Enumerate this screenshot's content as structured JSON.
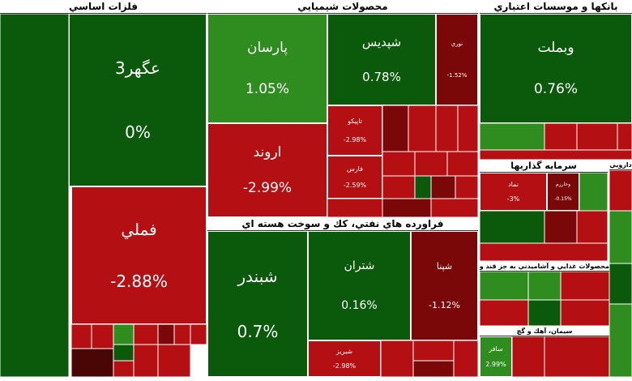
{
  "sectors": [
    {
      "title": "فلزات اساسي",
      "tiles": [
        {
          "name": "عگهر3",
          "change": "0%",
          "color": "#0b5a0b"
        },
        {
          "name": "فملي",
          "change": "-2.88%",
          "color": "#b40f12"
        }
      ]
    },
    {
      "title": "محصولات شيميايي",
      "tiles": [
        {
          "name": "پارسان",
          "change": "1.05%",
          "color": "#2f8c1f"
        },
        {
          "name": "شپديس",
          "change": "0.78%",
          "color": "#0b5a0b"
        },
        {
          "name": "نوري",
          "change": "-1.52%",
          "color": "#7a0808"
        },
        {
          "name": "اروند",
          "change": "-2.99%",
          "color": "#b40f12"
        },
        {
          "name": "تاپيكو",
          "change": "-2.98%",
          "color": "#b40f12"
        },
        {
          "name": "فارس",
          "change": "-2.59%",
          "color": "#b40f12"
        }
      ]
    },
    {
      "title": "فراورده هاي نفتي، كك و سوخت هسته اي",
      "tiles": [
        {
          "name": "شبندر",
          "change": "0.7%",
          "color": "#0b5a0b"
        },
        {
          "name": "شتران",
          "change": "0.16%",
          "color": "#0b5a0b"
        },
        {
          "name": "شپنا",
          "change": "-1.12%",
          "color": "#7a0808"
        },
        {
          "name": "شبريز",
          "change": "-2.98%",
          "color": "#b40f12"
        }
      ]
    },
    {
      "title": "بانكها و موسسات اعتباري",
      "tiles": [
        {
          "name": "وبملت",
          "change": "0.76%",
          "color": "#0b5a0b"
        }
      ]
    },
    {
      "title": "سرمايه گذاريها",
      "tiles": [
        {
          "name": "نماد",
          "change": "-3%",
          "color": "#b40f12"
        },
        {
          "name": "وخارزم",
          "change": "-0.15%",
          "color": "#7a0808"
        }
      ]
    },
    {
      "title": "محصولات غذايي و آشاميدني به جز قند و شكر",
      "tiles": []
    },
    {
      "title": "سيمان، آهك و گچ",
      "tiles": [
        {
          "name": "سافر",
          "change": "2.99%",
          "color": "#2f8c1f"
        }
      ]
    },
    {
      "title": "دارويي",
      "tiles": []
    }
  ]
}
